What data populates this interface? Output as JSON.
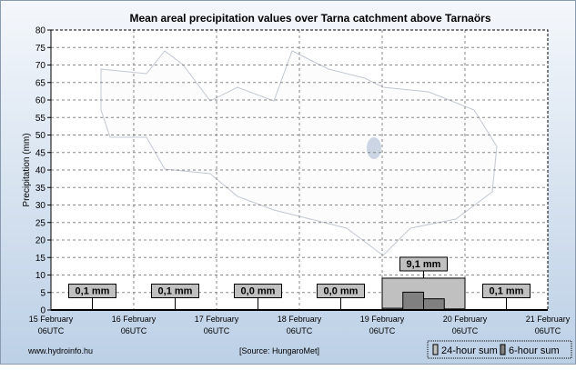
{
  "chart_data": {
    "type": "bar",
    "title": "Mean areal precipitation values over Tarna catchment above Tarnaörs",
    "ylabel": "Precipitation (mm)",
    "xlabel": "",
    "ylim": [
      0,
      80
    ],
    "yticks": [
      0,
      5,
      10,
      15,
      20,
      25,
      30,
      35,
      40,
      45,
      50,
      55,
      60,
      65,
      70,
      75,
      80
    ],
    "grid": true,
    "xticks": [
      {
        "line1": "15 February",
        "line2": "06UTC"
      },
      {
        "line1": "16 February",
        "line2": "06UTC"
      },
      {
        "line1": "17 February",
        "line2": "06UTC"
      },
      {
        "line1": "18 February",
        "line2": "06UTC"
      },
      {
        "line1": "19 February",
        "line2": "06UTC"
      },
      {
        "line1": "20 February",
        "line2": "06UTC"
      },
      {
        "line1": "21 February",
        "line2": "06UTC"
      }
    ],
    "daily_sums": [
      0.1,
      0.1,
      0.0,
      0.0,
      9.1,
      0.1
    ],
    "daily_labels": [
      "0,1 mm",
      "0,1 mm",
      "0,0 mm",
      "0,0 mm",
      "9,1 mm",
      "0,1 mm"
    ],
    "six_hour_sums": [
      [
        0,
        0,
        0,
        0
      ],
      [
        0,
        0,
        0,
        0
      ],
      [
        0,
        0,
        0,
        0
      ],
      [
        0,
        0,
        0,
        0
      ],
      [
        0.5,
        5.1,
        3.2,
        0.3
      ],
      [
        0,
        0,
        0,
        0
      ]
    ],
    "legend": {
      "placement": "bottom-right",
      "items": [
        "24-hour sum",
        "6-hour sum"
      ]
    },
    "colors": {
      "daily": "#c0c0c0",
      "six_hour": "#808080"
    }
  },
  "footer": {
    "website": "www.hydroinfo.hu",
    "source": "[Source: HungaroMet]"
  }
}
